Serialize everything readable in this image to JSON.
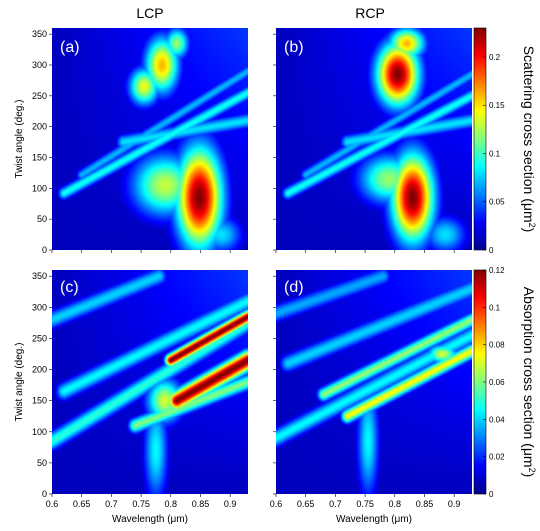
{
  "chart_data": {
    "type": "heatmap",
    "column_titles": [
      "LCP",
      "RCP"
    ],
    "colormap": "jet",
    "x_axis": {
      "label_main": "Wavelength (",
      "label_unit": "μm",
      "label_close": ")",
      "range": [
        0.6,
        0.93
      ],
      "ticks": [
        "0.6",
        "0.65",
        "0.7",
        "0.75",
        "0.8",
        "0.85",
        "0.9"
      ]
    },
    "y_axis": {
      "label": "Twist angle (deg.)",
      "range": [
        0,
        360
      ],
      "ticks": [
        "0",
        "50",
        "100",
        "150",
        "200",
        "250",
        "300",
        "350"
      ]
    },
    "rows": [
      {
        "colorbar_label_main": "Scattering cross section (",
        "colorbar_label_unit": "μm",
        "colorbar_label_sup": "2",
        "colorbar_label_close": ")",
        "colorbar_range": [
          0,
          0.23
        ],
        "colorbar_ticks": [
          "0",
          "0.05",
          "0.1",
          "0.15",
          "0.2"
        ],
        "panels": [
          {
            "label": "(a)",
            "features": [
              {
                "shape": "blob",
                "wavelength": 0.848,
                "angle": 85,
                "width": 0.038,
                "height": 80,
                "value": 0.23
              },
              {
                "shape": "blob",
                "wavelength": 0.79,
                "angle": 105,
                "width": 0.055,
                "height": 50,
                "value": 0.13
              },
              {
                "shape": "blob",
                "wavelength": 0.785,
                "angle": 300,
                "width": 0.028,
                "height": 45,
                "value": 0.16
              },
              {
                "shape": "blob",
                "wavelength": 0.755,
                "angle": 265,
                "width": 0.025,
                "height": 30,
                "value": 0.14
              },
              {
                "shape": "blob",
                "wavelength": 0.81,
                "angle": 335,
                "width": 0.02,
                "height": 25,
                "value": 0.12
              },
              {
                "shape": "band",
                "from": [
                  0.62,
                  92
                ],
                "to": [
                  0.93,
                  255
                ],
                "width": 10,
                "value": 0.09
              },
              {
                "shape": "band",
                "from": [
                  0.65,
                  122
                ],
                "to": [
                  0.93,
                  290
                ],
                "width": 9,
                "value": 0.07
              },
              {
                "shape": "band",
                "from": [
                  0.72,
                  175
                ],
                "to": [
                  0.93,
                  210
                ],
                "width": 12,
                "value": 0.08
              },
              {
                "shape": "blob",
                "wavelength": 0.885,
                "angle": 25,
                "width": 0.035,
                "height": 30,
                "value": 0.08
              }
            ]
          },
          {
            "label": "(b)",
            "features": [
              {
                "shape": "blob",
                "wavelength": 0.83,
                "angle": 85,
                "width": 0.035,
                "height": 70,
                "value": 0.23
              },
              {
                "shape": "blob",
                "wavelength": 0.805,
                "angle": 285,
                "width": 0.035,
                "height": 50,
                "value": 0.23
              },
              {
                "shape": "blob",
                "wavelength": 0.82,
                "angle": 335,
                "width": 0.03,
                "height": 25,
                "value": 0.16
              },
              {
                "shape": "blob",
                "wavelength": 0.79,
                "angle": 115,
                "width": 0.05,
                "height": 40,
                "value": 0.12
              },
              {
                "shape": "band",
                "from": [
                  0.62,
                  92
                ],
                "to": [
                  0.93,
                  250
                ],
                "width": 10,
                "value": 0.09
              },
              {
                "shape": "band",
                "from": [
                  0.65,
                  122
                ],
                "to": [
                  0.93,
                  285
                ],
                "width": 9,
                "value": 0.07
              },
              {
                "shape": "band",
                "from": [
                  0.72,
                  175
                ],
                "to": [
                  0.93,
                  210
                ],
                "width": 12,
                "value": 0.08
              },
              {
                "shape": "blob",
                "wavelength": 0.885,
                "angle": 25,
                "width": 0.035,
                "height": 30,
                "value": 0.08
              }
            ]
          }
        ]
      },
      {
        "colorbar_label_main": "Absorption cross section (",
        "colorbar_label_unit": "μm",
        "colorbar_label_sup": "2",
        "colorbar_label_close": ")",
        "colorbar_range": [
          0,
          0.12
        ],
        "colorbar_ticks": [
          "0",
          "0.02",
          "0.04",
          "0.06",
          "0.08",
          "0.1",
          "0.12"
        ],
        "panels": [
          {
            "label": "(c)",
            "features": [
              {
                "shape": "band",
                "from": [
                  0.8,
                  215
                ],
                "to": [
                  0.93,
                  285
                ],
                "width": 10,
                "value": 0.12
              },
              {
                "shape": "band",
                "from": [
                  0.81,
                  150
                ],
                "to": [
                  0.93,
                  215
                ],
                "width": 15,
                "value": 0.12
              },
              {
                "shape": "band",
                "from": [
                  0.6,
                  85
                ],
                "to": [
                  0.93,
                  275
                ],
                "width": 14,
                "value": 0.05
              },
              {
                "shape": "band",
                "from": [
                  0.62,
                  165
                ],
                "to": [
                  0.93,
                  310
                ],
                "width": 14,
                "value": 0.045
              },
              {
                "shape": "band",
                "from": [
                  0.6,
                  280
                ],
                "to": [
                  0.78,
                  350
                ],
                "width": 14,
                "value": 0.04
              },
              {
                "shape": "band",
                "from": [
                  0.74,
                  110
                ],
                "to": [
                  0.93,
                  180
                ],
                "width": 12,
                "value": 0.06
              },
              {
                "shape": "blob",
                "wavelength": 0.79,
                "angle": 150,
                "width": 0.03,
                "height": 35,
                "value": 0.07
              },
              {
                "shape": "blob",
                "wavelength": 0.775,
                "angle": 70,
                "width": 0.02,
                "height": 80,
                "value": 0.045
              }
            ]
          },
          {
            "label": "(d)",
            "features": [
              {
                "shape": "band",
                "from": [
                  0.72,
                  125
                ],
                "to": [
                  0.93,
                  230
                ],
                "width": 11,
                "value": 0.075
              },
              {
                "shape": "band",
                "from": [
                  0.68,
                  160
                ],
                "to": [
                  0.93,
                  280
                ],
                "width": 11,
                "value": 0.062
              },
              {
                "shape": "band",
                "from": [
                  0.6,
                  90
                ],
                "to": [
                  0.93,
                  255
                ],
                "width": 14,
                "value": 0.045
              },
              {
                "shape": "band",
                "from": [
                  0.62,
                  210
                ],
                "to": [
                  0.93,
                  330
                ],
                "width": 14,
                "value": 0.04
              },
              {
                "shape": "band",
                "from": [
                  0.6,
                  290
                ],
                "to": [
                  0.78,
                  350
                ],
                "width": 14,
                "value": 0.035
              },
              {
                "shape": "blob",
                "wavelength": 0.755,
                "angle": 85,
                "width": 0.018,
                "height": 90,
                "value": 0.045
              },
              {
                "shape": "blob",
                "wavelength": 0.88,
                "angle": 225,
                "width": 0.025,
                "height": 15,
                "value": 0.07
              }
            ]
          }
        ]
      }
    ]
  }
}
